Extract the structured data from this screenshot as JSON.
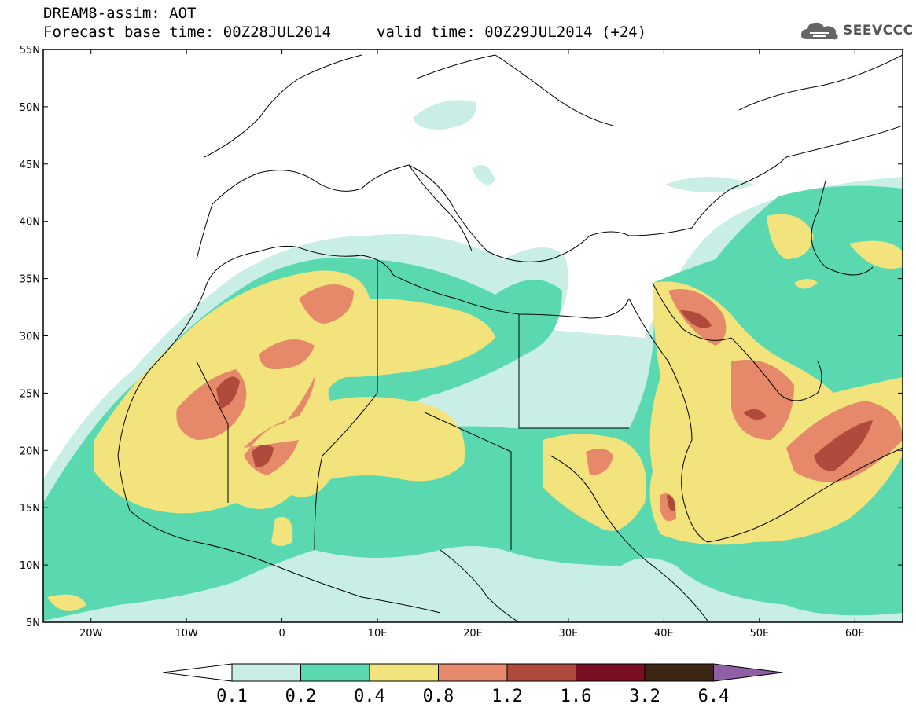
{
  "title": {
    "line1": "DREAM8-assim: AOT",
    "line2": "Forecast base time: 00Z28JUL2014",
    "valid": "valid time: 00Z29JUL2014 (+24)"
  },
  "logo": {
    "text": "SEEVCCC",
    "icon": "cloud-icon"
  },
  "map": {
    "lat_ticks": [
      "55N",
      "50N",
      "45N",
      "40N",
      "35N",
      "30N",
      "25N",
      "20N",
      "15N",
      "10N",
      "5N"
    ],
    "lon_ticks": [
      "20W",
      "10W",
      "0",
      "10E",
      "20E",
      "30E",
      "40E",
      "50E",
      "60E"
    ],
    "lat_range": [
      5,
      55
    ],
    "lon_range": [
      -25,
      65
    ]
  },
  "colorbar": {
    "labels": [
      "0.1",
      "0.2",
      "0.4",
      "0.8",
      "1.2",
      "1.6",
      "3.2",
      "6.4"
    ],
    "colors": [
      "#c8eee6",
      "#5ad9b1",
      "#f3e37c",
      "#e6896a",
      "#b04a3c",
      "#7b0e22",
      "#3c2614",
      "#8f5fa6"
    ]
  }
}
